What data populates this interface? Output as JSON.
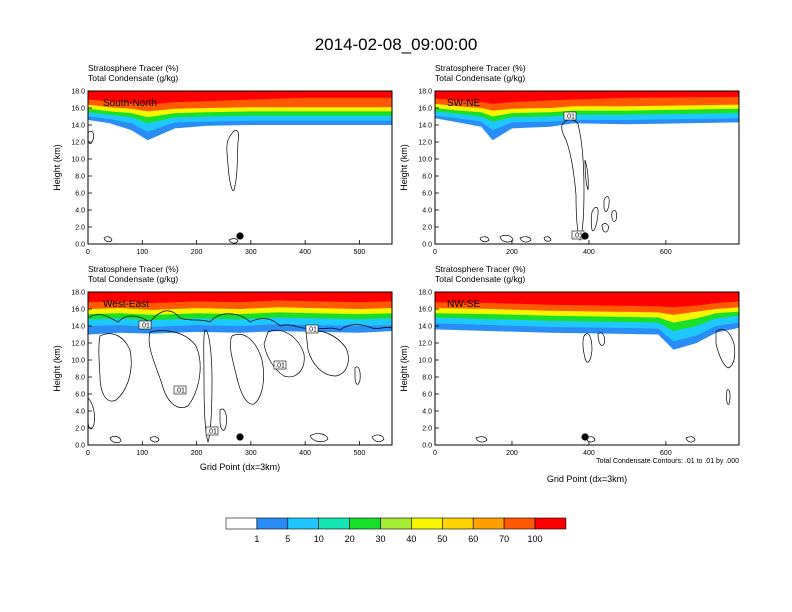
{
  "figure": {
    "title": "2014-02-08_09:00:00",
    "contour_note": "Total Condensate Contours: .01 to .01 by .000"
  },
  "chart_data": {
    "type": "heatmap",
    "shared": {
      "subtitle_1": "Stratosphere Tracer   (%)",
      "subtitle_2": "Total Condensate   (g/kg)",
      "ylabel": "Height (km)",
      "xlabel": "Grid Point (dx=3km)",
      "ylim": [
        0,
        18
      ],
      "yticks": [
        "0.0",
        "2.0",
        "4.0",
        "6.0",
        "8.0",
        "10.0",
        "12.0",
        "14.0",
        "16.0",
        "18.0"
      ],
      "colorbar": {
        "levels": [
          "1",
          "5",
          "10",
          "20",
          "30",
          "40",
          "50",
          "60",
          "70",
          "100"
        ],
        "colors": [
          "#ffffff",
          "#2a8cf5",
          "#1ec8ff",
          "#12e6b4",
          "#18e028",
          "#a6ec32",
          "#f6f600",
          "#fcd200",
          "#ffa000",
          "#ff5a00",
          "#ff0000"
        ]
      }
    },
    "panels": [
      {
        "id": "south-north",
        "title": "South-North",
        "xlim": [
          0,
          560
        ],
        "xticks": [
          "0",
          "100",
          "200",
          "300",
          "400",
          "500"
        ],
        "xtick_values": [
          0,
          100,
          200,
          300,
          400,
          500
        ],
        "tracer_layers": {
          "x": [
            0,
            40,
            80,
            110,
            160,
            220,
            300,
            400,
            560
          ],
          "l1": [
            14.6,
            14.2,
            13.4,
            12.2,
            13.6,
            13.9,
            14.0,
            14.0,
            14.0
          ],
          "l10": [
            15.0,
            14.7,
            14.2,
            13.2,
            14.3,
            14.4,
            14.5,
            14.5,
            14.5
          ],
          "l30": [
            15.5,
            15.2,
            14.9,
            14.2,
            14.9,
            15.0,
            15.1,
            15.1,
            15.1
          ],
          "l50": [
            15.9,
            15.6,
            15.4,
            14.9,
            15.4,
            15.5,
            15.6,
            15.6,
            15.6
          ],
          "l70": [
            16.4,
            16.1,
            15.9,
            15.6,
            15.9,
            16.0,
            16.1,
            16.1,
            16.1
          ],
          "l100": [
            17.0,
            16.8,
            16.6,
            16.4,
            16.7,
            16.8,
            17.0,
            17.2,
            17.2
          ]
        },
        "contour_labels": [],
        "marker_x": 280
      },
      {
        "id": "sw-ne",
        "title": "SW-NE",
        "xlim": [
          0,
          790
        ],
        "xticks": [
          "0",
          "200",
          "400",
          "600"
        ],
        "xtick_values": [
          0,
          200,
          400,
          600
        ],
        "tracer_layers": {
          "x": [
            0,
            60,
            120,
            150,
            200,
            300,
            360,
            500,
            790
          ],
          "l1": [
            14.8,
            14.3,
            13.8,
            12.2,
            13.6,
            13.8,
            14.2,
            14.1,
            14.3
          ],
          "l10": [
            15.1,
            14.8,
            14.4,
            13.4,
            14.3,
            14.4,
            14.6,
            14.6,
            14.8
          ],
          "l30": [
            15.6,
            15.3,
            15.0,
            14.4,
            14.9,
            15.0,
            15.2,
            15.2,
            15.4
          ],
          "l50": [
            16.0,
            15.7,
            15.5,
            15.0,
            15.4,
            15.5,
            15.7,
            15.7,
            15.9
          ],
          "l70": [
            16.5,
            16.2,
            16.0,
            15.7,
            15.9,
            16.0,
            16.2,
            16.2,
            16.4
          ],
          "l100": [
            17.1,
            16.9,
            16.7,
            16.5,
            16.7,
            16.9,
            17.0,
            17.2,
            17.3
          ]
        },
        "contour_labels": [
          ".01",
          ".01"
        ],
        "marker_x": 390
      },
      {
        "id": "west-east",
        "title": "West-East",
        "xlim": [
          0,
          560
        ],
        "xticks": [
          "0",
          "100",
          "200",
          "300",
          "400",
          "500"
        ],
        "xtick_values": [
          0,
          100,
          200,
          300,
          400,
          500
        ],
        "tracer_layers": {
          "x": [
            0,
            60,
            120,
            200,
            280,
            350,
            420,
            500,
            560
          ],
          "l1": [
            13.0,
            13.2,
            13.1,
            13.3,
            13.2,
            13.4,
            13.3,
            13.2,
            13.4
          ],
          "l10": [
            14.0,
            14.1,
            13.9,
            14.1,
            14.0,
            14.2,
            14.1,
            14.0,
            14.1
          ],
          "l30": [
            14.8,
            14.9,
            14.7,
            14.9,
            14.8,
            15.0,
            14.9,
            14.8,
            14.9
          ],
          "l50": [
            15.4,
            15.5,
            15.3,
            15.5,
            15.4,
            15.6,
            15.5,
            15.4,
            15.5
          ],
          "l70": [
            16.0,
            16.1,
            15.9,
            16.1,
            16.0,
            16.2,
            16.1,
            16.0,
            16.1
          ],
          "l100": [
            16.8,
            16.9,
            16.7,
            16.9,
            16.8,
            17.0,
            16.9,
            16.8,
            16.9
          ]
        },
        "contour_labels": [
          ".01",
          ".01",
          ".01",
          ".01",
          ".01"
        ],
        "marker_x": 280
      },
      {
        "id": "nw-se",
        "title": "NW-SE",
        "xlim": [
          0,
          790
        ],
        "xticks": [
          "0",
          "200",
          "400",
          "600"
        ],
        "xtick_values": [
          0,
          200,
          400,
          600
        ],
        "tracer_layers": {
          "x": [
            0,
            150,
            300,
            450,
            580,
            620,
            680,
            730,
            790
          ],
          "l1": [
            13.6,
            13.4,
            13.2,
            13.1,
            13.0,
            11.2,
            12.0,
            13.2,
            13.8
          ],
          "l10": [
            14.3,
            14.1,
            13.9,
            13.8,
            13.7,
            12.2,
            12.9,
            14.0,
            14.4
          ],
          "l30": [
            15.0,
            14.8,
            14.6,
            14.5,
            14.4,
            13.4,
            14.0,
            14.9,
            15.2
          ],
          "l50": [
            15.5,
            15.4,
            15.2,
            15.1,
            15.0,
            14.4,
            14.9,
            15.5,
            15.7
          ],
          "l70": [
            16.1,
            16.0,
            15.8,
            15.7,
            15.6,
            15.3,
            15.7,
            16.0,
            16.2
          ],
          "l100": [
            16.8,
            16.7,
            16.5,
            16.4,
            16.3,
            16.2,
            16.4,
            16.7,
            16.9
          ]
        },
        "contour_labels": [],
        "marker_x": 390
      }
    ]
  }
}
